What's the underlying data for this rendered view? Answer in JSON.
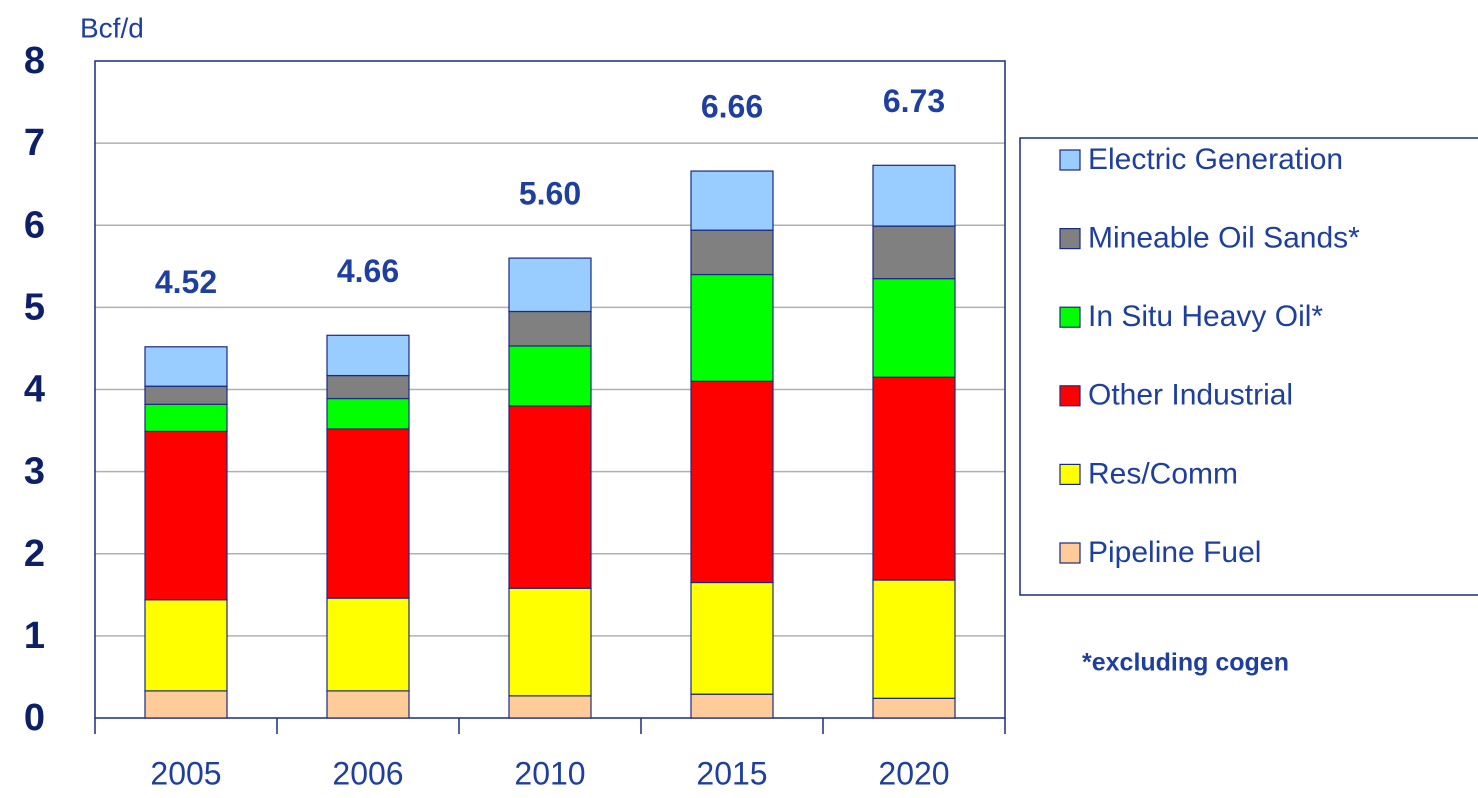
{
  "chart_data": {
    "type": "stacked_bar",
    "y_label": "Bcf/d",
    "annotation": "*excluding cogen",
    "categories": [
      "2005",
      "2006",
      "2010",
      "2015",
      "2020"
    ],
    "series": [
      {
        "name": "Pipeline Fuel",
        "color": "#ffcc99",
        "values": [
          0.33,
          0.33,
          0.27,
          0.29,
          0.24
        ]
      },
      {
        "name": "Res/Comm",
        "color": "#ffff00",
        "values": [
          1.11,
          1.13,
          1.31,
          1.36,
          1.44
        ]
      },
      {
        "name": "Other Industrial",
        "color": "#ff0000",
        "values": [
          2.05,
          2.06,
          2.22,
          2.45,
          2.47
        ]
      },
      {
        "name": "In Situ Heavy Oil*",
        "color": "#00ff00",
        "values": [
          0.33,
          0.37,
          0.73,
          1.3,
          1.2
        ]
      },
      {
        "name": "Mineable Oil Sands*",
        "color": "#808080",
        "values": [
          0.22,
          0.28,
          0.42,
          0.54,
          0.64
        ]
      },
      {
        "name": "Electric Generation",
        "color": "#99ccff",
        "values": [
          0.48,
          0.49,
          0.65,
          0.72,
          0.74
        ]
      }
    ],
    "totals": [
      4.52,
      4.66,
      5.6,
      6.66,
      6.73
    ],
    "total_labels": [
      "4.52",
      "4.66",
      "5.60",
      "6.66",
      "6.73"
    ],
    "ylim": [
      0,
      8
    ],
    "yticks": [
      0,
      1,
      2,
      3,
      4,
      5,
      6,
      7,
      8
    ],
    "grid": true,
    "legend": "right"
  }
}
